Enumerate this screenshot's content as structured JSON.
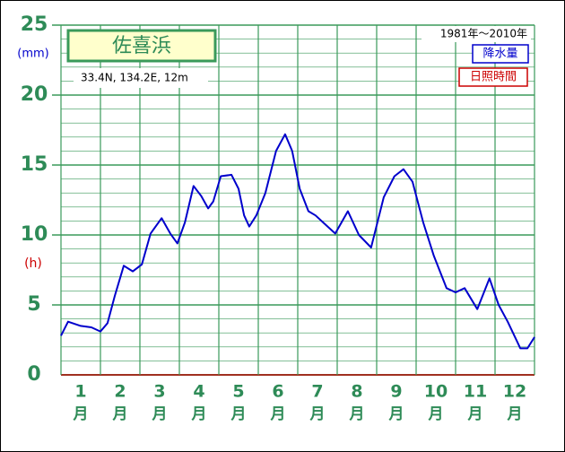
{
  "chart_data": {
    "type": "line",
    "title": "佐喜浜",
    "location": "33.4N,  134.2E,  12m",
    "period": "1981年～2010年",
    "y_label": "(mm)",
    "y2_label": "(h)",
    "categories": [
      "1",
      "2",
      "3",
      "4",
      "5",
      "6",
      "7",
      "8",
      "9",
      "10",
      "11",
      "12"
    ],
    "category_suffix": "月",
    "xlim": [
      0,
      12
    ],
    "ylim": [
      0,
      25
    ],
    "yticks": [
      0,
      5,
      10,
      15,
      20,
      25
    ],
    "grid": true,
    "series": [
      {
        "name": "降水量",
        "color": "#0000cc",
        "x": [
          0,
          0.18,
          0.5,
          0.77,
          1.0,
          1.18,
          1.36,
          1.59,
          1.82,
          2.05,
          2.27,
          2.55,
          2.77,
          2.95,
          3.14,
          3.36,
          3.55,
          3.73,
          3.86,
          4.05,
          4.32,
          4.5,
          4.64,
          4.77,
          4.95,
          5.18,
          5.45,
          5.68,
          5.86,
          6.05,
          6.27,
          6.45,
          6.68,
          6.95,
          7.27,
          7.55,
          7.86,
          8.18,
          8.45,
          8.68,
          8.91,
          9.18,
          9.45,
          9.77,
          10.0,
          10.23,
          10.55,
          10.86,
          11.09,
          11.32,
          11.64,
          11.82,
          12
        ],
        "values": [
          2.8,
          3.8,
          3.5,
          3.4,
          3.1,
          3.7,
          5.6,
          7.8,
          7.4,
          7.9,
          10.1,
          11.2,
          10.1,
          9.4,
          10.9,
          13.5,
          12.8,
          11.9,
          12.4,
          14.2,
          14.3,
          13.3,
          11.4,
          10.6,
          11.4,
          13.0,
          16.0,
          17.2,
          16.0,
          13.3,
          11.7,
          11.4,
          10.8,
          10.1,
          11.7,
          10.0,
          9.1,
          12.7,
          14.2,
          14.7,
          13.8,
          10.9,
          8.5,
          6.2,
          5.9,
          6.2,
          4.7,
          6.9,
          5.0,
          3.8,
          1.9,
          1.9,
          2.7
        ]
      }
    ],
    "secondary_legend": {
      "name": "日照時間",
      "color": "#cc0000"
    }
  }
}
